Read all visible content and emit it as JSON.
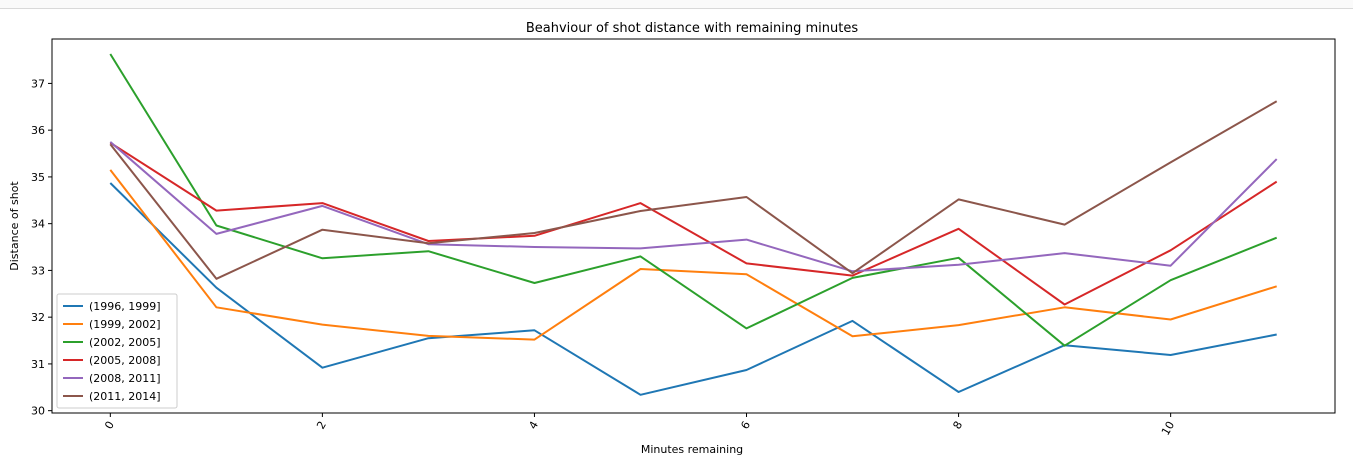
{
  "chart_data": {
    "type": "line",
    "title": "Beahviour of shot distance with remaining minutes",
    "xlabel": "Minutes remaining",
    "ylabel": "Distance of shot",
    "x": [
      0,
      1,
      2,
      3,
      4,
      5,
      6,
      7,
      8,
      9,
      10,
      11
    ],
    "xticks": [
      0,
      2,
      4,
      6,
      8,
      10
    ],
    "yticks": [
      30,
      31,
      32,
      33,
      34,
      35,
      36,
      37
    ],
    "xlim": [
      -0.55,
      11.55
    ],
    "ylim": [
      29.95,
      37.95
    ],
    "grid": false,
    "legend_position": "lower-left",
    "series": [
      {
        "name": "(1996, 1999]",
        "color": "#1f77b4",
        "values": [
          34.87,
          32.63,
          30.92,
          31.55,
          31.72,
          30.34,
          30.87,
          31.92,
          30.4,
          31.4,
          31.19,
          31.63
        ]
      },
      {
        "name": "(1999, 2002]",
        "color": "#ff7f0e",
        "values": [
          35.15,
          32.21,
          31.84,
          31.6,
          31.52,
          33.03,
          32.92,
          31.59,
          31.83,
          32.21,
          31.95,
          32.66
        ]
      },
      {
        "name": "(2002, 2005]",
        "color": "#2ca02c",
        "values": [
          37.63,
          33.96,
          33.26,
          33.41,
          32.73,
          33.3,
          31.76,
          32.84,
          33.27,
          31.39,
          32.79,
          33.7
        ]
      },
      {
        "name": "(2005, 2008]",
        "color": "#d62728",
        "values": [
          35.73,
          34.28,
          34.44,
          33.63,
          33.74,
          34.44,
          33.15,
          32.89,
          33.89,
          32.27,
          33.43,
          34.9
        ]
      },
      {
        "name": "(2008, 2011]",
        "color": "#9467bd",
        "values": [
          35.75,
          33.78,
          34.38,
          33.56,
          33.5,
          33.47,
          33.66,
          32.98,
          33.12,
          33.37,
          33.1,
          35.38
        ]
      },
      {
        "name": "(2011, 2014]",
        "color": "#8c564b",
        "values": [
          35.7,
          32.82,
          33.87,
          33.58,
          33.8,
          34.27,
          34.57,
          32.94,
          34.52,
          33.98,
          35.31,
          36.62
        ]
      }
    ]
  }
}
